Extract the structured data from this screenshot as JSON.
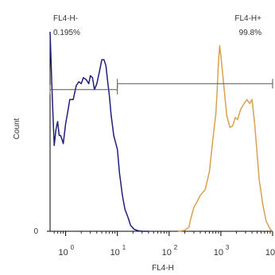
{
  "chart_data": {
    "type": "line",
    "xlabel": "FL4-H",
    "ylabel": "Count",
    "x_scale": "log",
    "xlim": [
      0.5,
      10000
    ],
    "ylim": [
      0,
      100
    ],
    "x_ticks": [
      1,
      10,
      100,
      1000,
      10000
    ],
    "x_tick_labels": [
      "10",
      "10",
      "10",
      "10",
      "10"
    ],
    "x_tick_exponents": [
      "0",
      "1",
      "2",
      "3",
      "4"
    ],
    "y_tick_labels": [
      "0"
    ],
    "grid": false,
    "gates": [
      {
        "name": "FL4-H-",
        "percent": "0.195%",
        "x_range": [
          0.5,
          10
        ],
        "y": 71
      },
      {
        "name": "FL4-H+",
        "percent": "99.8%",
        "x_range": [
          10,
          10000
        ],
        "y": 74
      }
    ],
    "series": [
      {
        "color": "#1f1f7a",
        "points": [
          [
            0.5,
            100
          ],
          [
            0.55,
            68
          ],
          [
            0.6,
            43
          ],
          [
            0.65,
            51
          ],
          [
            0.7,
            55
          ],
          [
            0.75,
            48
          ],
          [
            0.8,
            48
          ],
          [
            0.85,
            46
          ],
          [
            0.9,
            44
          ],
          [
            1.0,
            54
          ],
          [
            1.1,
            60
          ],
          [
            1.2,
            66
          ],
          [
            1.4,
            66
          ],
          [
            1.6,
            73
          ],
          [
            1.8,
            75
          ],
          [
            2.0,
            74
          ],
          [
            2.2,
            77
          ],
          [
            2.5,
            76
          ],
          [
            2.8,
            74
          ],
          [
            3.0,
            78
          ],
          [
            3.3,
            77
          ],
          [
            3.6,
            71
          ],
          [
            4.0,
            74
          ],
          [
            4.5,
            80
          ],
          [
            5.0,
            86
          ],
          [
            5.5,
            86
          ],
          [
            6.0,
            83
          ],
          [
            6.5,
            75
          ],
          [
            7.0,
            68
          ],
          [
            7.6,
            58
          ],
          [
            8.5,
            48
          ],
          [
            10,
            41
          ],
          [
            11,
            29
          ],
          [
            12.5,
            18
          ],
          [
            14,
            11
          ],
          [
            16,
            7
          ],
          [
            18,
            3
          ],
          [
            21,
            1
          ],
          [
            25,
            0.3
          ],
          [
            30,
            0
          ],
          [
            40,
            0
          ]
        ]
      },
      {
        "color": "#d9a050",
        "points": [
          [
            150,
            0
          ],
          [
            200,
            0.5
          ],
          [
            240,
            2
          ],
          [
            260,
            6
          ],
          [
            300,
            12
          ],
          [
            350,
            15
          ],
          [
            400,
            18
          ],
          [
            500,
            21
          ],
          [
            600,
            30
          ],
          [
            700,
            46
          ],
          [
            800,
            59
          ],
          [
            850,
            71
          ],
          [
            900,
            85
          ],
          [
            950,
            93
          ],
          [
            1000,
            88
          ],
          [
            1100,
            77
          ],
          [
            1300,
            58
          ],
          [
            1500,
            52
          ],
          [
            1700,
            53
          ],
          [
            1900,
            57
          ],
          [
            2100,
            56
          ],
          [
            2400,
            61
          ],
          [
            2800,
            64
          ],
          [
            3200,
            66
          ],
          [
            3600,
            64
          ],
          [
            4000,
            66
          ],
          [
            4500,
            54
          ],
          [
            5500,
            26
          ],
          [
            6500,
            13
          ],
          [
            7500,
            5
          ],
          [
            9000,
            1
          ],
          [
            10000,
            0
          ]
        ]
      }
    ]
  }
}
